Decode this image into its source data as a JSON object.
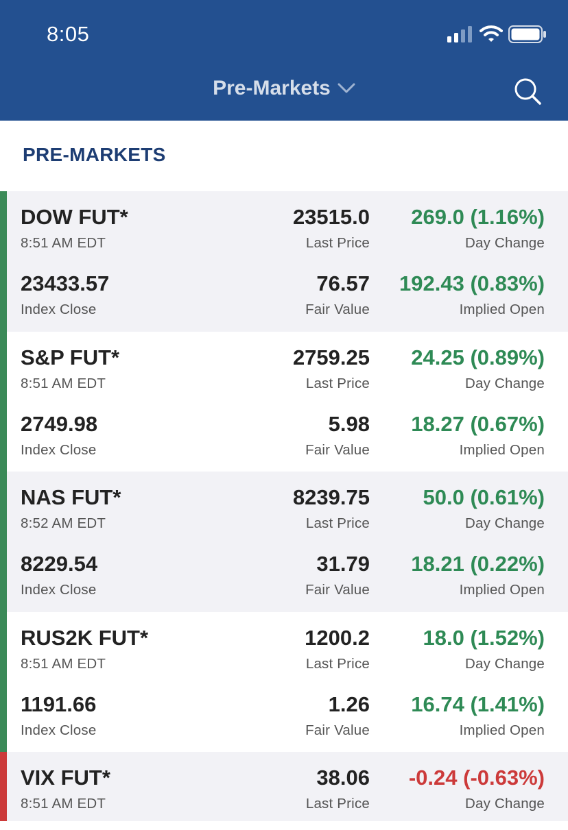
{
  "status_bar": {
    "time": "8:05"
  },
  "nav": {
    "title": "Pre-Markets"
  },
  "section": {
    "title": "PRE-MARKETS"
  },
  "colors": {
    "header_bg": "#235090",
    "positive": "#2e8a55",
    "negative": "#cc3a3a",
    "section_title": "#1d3d73"
  },
  "quotes": [
    {
      "name": "DOW FUT*",
      "time": "8:51 AM EDT",
      "last_price": "23515.0",
      "last_price_label": "Last Price",
      "day_change": "269.0 (1.16%)",
      "day_change_label": "Day Change",
      "index_close": "23433.57",
      "index_close_label": "Index Close",
      "fair_value": "76.57",
      "fair_value_label": "Fair Value",
      "implied_open": "192.43 (0.83%)",
      "implied_open_label": "Implied Open"
    },
    {
      "name": "S&P FUT*",
      "time": "8:51 AM EDT",
      "last_price": "2759.25",
      "last_price_label": "Last Price",
      "day_change": "24.25 (0.89%)",
      "day_change_label": "Day Change",
      "index_close": "2749.98",
      "index_close_label": "Index Close",
      "fair_value": "5.98",
      "fair_value_label": "Fair Value",
      "implied_open": "18.27 (0.67%)",
      "implied_open_label": "Implied Open"
    },
    {
      "name": "NAS FUT*",
      "time": "8:52 AM EDT",
      "last_price": "8239.75",
      "last_price_label": "Last Price",
      "day_change": "50.0 (0.61%)",
      "day_change_label": "Day Change",
      "index_close": "8229.54",
      "index_close_label": "Index Close",
      "fair_value": "31.79",
      "fair_value_label": "Fair Value",
      "implied_open": "18.21 (0.22%)",
      "implied_open_label": "Implied Open"
    },
    {
      "name": "RUS2K FUT*",
      "time": "8:51 AM EDT",
      "last_price": "1200.2",
      "last_price_label": "Last Price",
      "day_change": "18.0 (1.52%)",
      "day_change_label": "Day Change",
      "index_close": "1191.66",
      "index_close_label": "Index Close",
      "fair_value": "1.26",
      "fair_value_label": "Fair Value",
      "implied_open": "16.74 (1.41%)",
      "implied_open_label": "Implied Open"
    },
    {
      "name": "VIX FUT*",
      "time": "8:51 AM EDT",
      "last_price": "38.06",
      "last_price_label": "Last Price",
      "day_change": "-0.24 (-0.63%)",
      "day_change_label": "Day Change"
    }
  ]
}
